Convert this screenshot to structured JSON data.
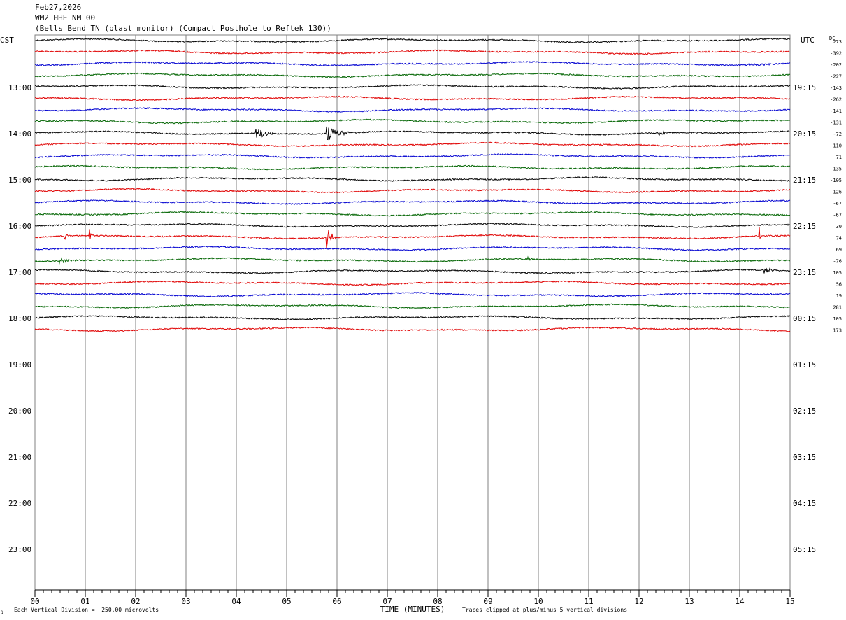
{
  "header": {
    "date": "Feb27,2026",
    "station": "WM2 HHE NM 00",
    "location": "(Bells Bend TN (blast monitor) (Compact Posthole to Reftek 130))"
  },
  "left_label": "CST",
  "right_label": "UTC",
  "dc_label": "DC",
  "footer": {
    "x_axis_title": "TIME (MINUTES)",
    "scale_note": "Each Vertical Division =  250.00 microvolts",
    "clip_note": "Traces clipped at plus/minus 5 vertical divisions"
  },
  "colors": {
    "trace_cycle": [
      "#000000",
      "#e00000",
      "#0000d0",
      "#006400"
    ],
    "grid": "#808080"
  },
  "chart_data": {
    "type": "line",
    "title": "Feb27,2026 WM2 HHE NM 00",
    "xlabel": "TIME (MINUTES)",
    "xlim": [
      0,
      15
    ],
    "x_ticks": [
      "00",
      "01",
      "02",
      "03",
      "04",
      "05",
      "06",
      "07",
      "08",
      "09",
      "10",
      "11",
      "12",
      "13",
      "14",
      "15"
    ],
    "rows_per_hour": 4,
    "row_minutes": 15,
    "hour_rows": 11,
    "left_hour_labels": [
      "13:00",
      "14:00",
      "15:00",
      "16:00",
      "17:00",
      "18:00",
      "19:00",
      "20:00",
      "21:00",
      "22:00",
      "23:00"
    ],
    "right_hour_labels": [
      "19:15",
      "20:15",
      "21:15",
      "22:15",
      "23:15",
      "00:15",
      "01:15",
      "02:15",
      "03:15",
      "04:15",
      "05:15"
    ],
    "trace_count": 26,
    "dc_offsets": [
      "273",
      "-392",
      "-202",
      "-227",
      "-143",
      "-262",
      "-141",
      "-131",
      "-72",
      "110",
      "71",
      "-135",
      "-105",
      "-126",
      "-67",
      "-67",
      "30",
      "74",
      "69",
      "-76",
      "105",
      "56",
      "19",
      "281",
      "105",
      "173"
    ],
    "events": [
      {
        "trace": 8,
        "minute": 4.4,
        "amplitude": 11,
        "width": 0.35
      },
      {
        "trace": 8,
        "minute": 5.8,
        "amplitude": 13,
        "width": 0.45
      },
      {
        "trace": 8,
        "minute": 12.4,
        "amplitude": 4,
        "width": 0.25
      },
      {
        "trace": 17,
        "minute": 0.6,
        "amplitude": 8,
        "width": 0.08
      },
      {
        "trace": 17,
        "minute": 1.1,
        "amplitude": 7,
        "width": 0.06
      },
      {
        "trace": 17,
        "minute": 5.8,
        "amplitude": 18,
        "width": 0.18
      },
      {
        "trace": 17,
        "minute": 14.4,
        "amplitude": 8,
        "width": 0.05
      },
      {
        "trace": 19,
        "minute": 0.5,
        "amplitude": 4,
        "width": 0.5
      },
      {
        "trace": 19,
        "minute": 9.8,
        "amplitude": 4,
        "width": 0.05
      },
      {
        "trace": 20,
        "minute": 14.5,
        "amplitude": 5,
        "width": 0.3
      },
      {
        "trace": 2,
        "minute": 14.2,
        "amplitude": 3,
        "width": 0.5
      }
    ]
  }
}
